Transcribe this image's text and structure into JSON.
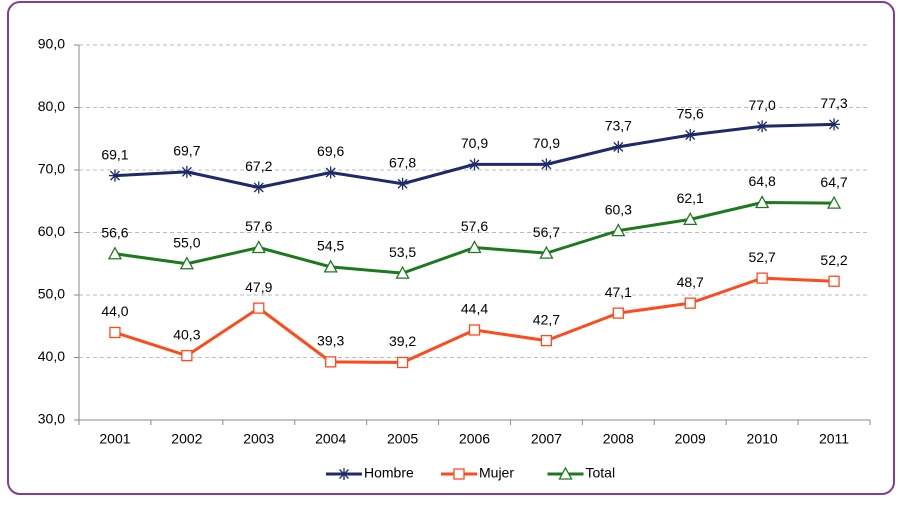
{
  "chart_data": {
    "type": "line",
    "categories": [
      "2001",
      "2002",
      "2003",
      "2004",
      "2005",
      "2006",
      "2007",
      "2008",
      "2009",
      "2010",
      "2011"
    ],
    "series": [
      {
        "name": "Hombre",
        "color": "#1f2a6b",
        "marker": "star",
        "values": [
          69.1,
          69.7,
          67.2,
          69.6,
          67.8,
          70.9,
          70.9,
          73.7,
          75.6,
          77.0,
          77.3
        ],
        "value_labels": [
          "69,1",
          "69,7",
          "67,2",
          "69,6",
          "67,8",
          "70,9",
          "70,9",
          "73,7",
          "75,6",
          "77,0",
          "77,3"
        ]
      },
      {
        "name": "Mujer",
        "color": "#ff4a1c",
        "marker": "square",
        "values": [
          44.0,
          40.3,
          47.9,
          39.3,
          39.2,
          44.4,
          42.7,
          47.1,
          48.7,
          52.7,
          52.2
        ],
        "value_labels": [
          "44,0",
          "40,3",
          "47,9",
          "39,3",
          "39,2",
          "44,4",
          "42,7",
          "47,1",
          "48,7",
          "52,7",
          "52,2"
        ]
      },
      {
        "name": "Total",
        "color": "#1b7a1b",
        "marker": "triangle",
        "values": [
          56.6,
          55.0,
          57.6,
          54.5,
          53.5,
          57.6,
          56.7,
          60.3,
          62.1,
          64.8,
          64.7
        ],
        "value_labels": [
          "56,6",
          "55,0",
          "57,6",
          "54,5",
          "53,5",
          "57,6",
          "56,7",
          "60,3",
          "62,1",
          "64,8",
          "64,7"
        ]
      }
    ],
    "ylim": [
      30,
      90
    ],
    "yticks": [
      {
        "value": 30,
        "label": "30,0"
      },
      {
        "value": 40,
        "label": "40,0"
      },
      {
        "value": 50,
        "label": "50,0"
      },
      {
        "value": 60,
        "label": "60,0"
      },
      {
        "value": 70,
        "label": "70,0"
      },
      {
        "value": 80,
        "label": "80,0"
      },
      {
        "value": 90,
        "label": "90,0"
      }
    ],
    "grid": true,
    "legend": "bottom"
  }
}
